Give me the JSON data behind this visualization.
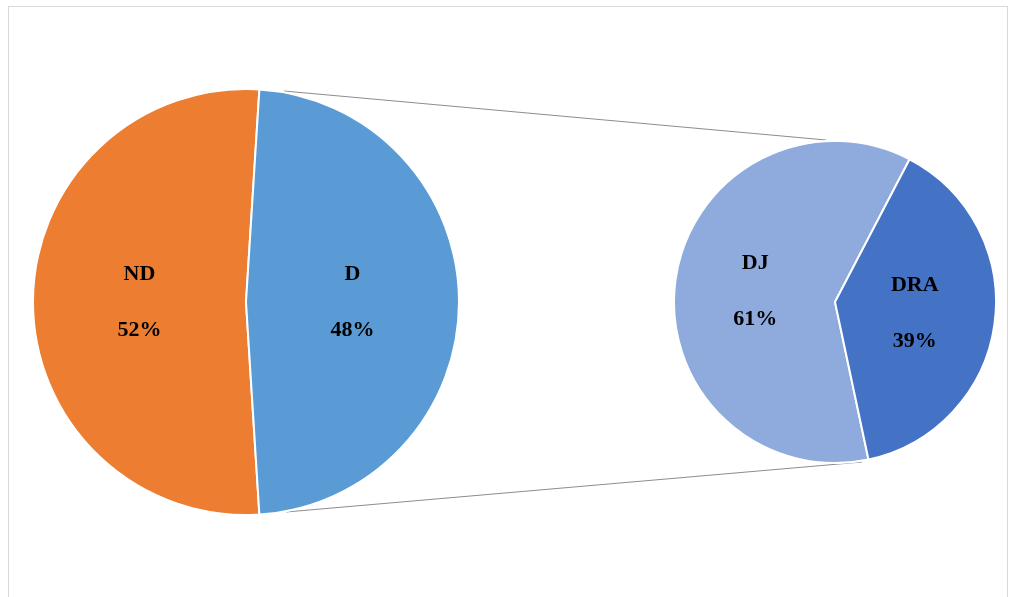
{
  "chart_data": [
    {
      "type": "pie",
      "categories": [
        "ND",
        "D"
      ],
      "values": [
        52,
        48
      ],
      "colors": [
        "#ed7d31",
        "#5b9bd5"
      ],
      "value_labels": [
        "52%",
        "48%"
      ]
    },
    {
      "type": "pie",
      "categories": [
        "DJ",
        "DRA"
      ],
      "values": [
        61,
        39
      ],
      "colors": [
        "#8faadc",
        "#4472c4"
      ],
      "value_labels": [
        "61%",
        "39%"
      ]
    }
  ]
}
